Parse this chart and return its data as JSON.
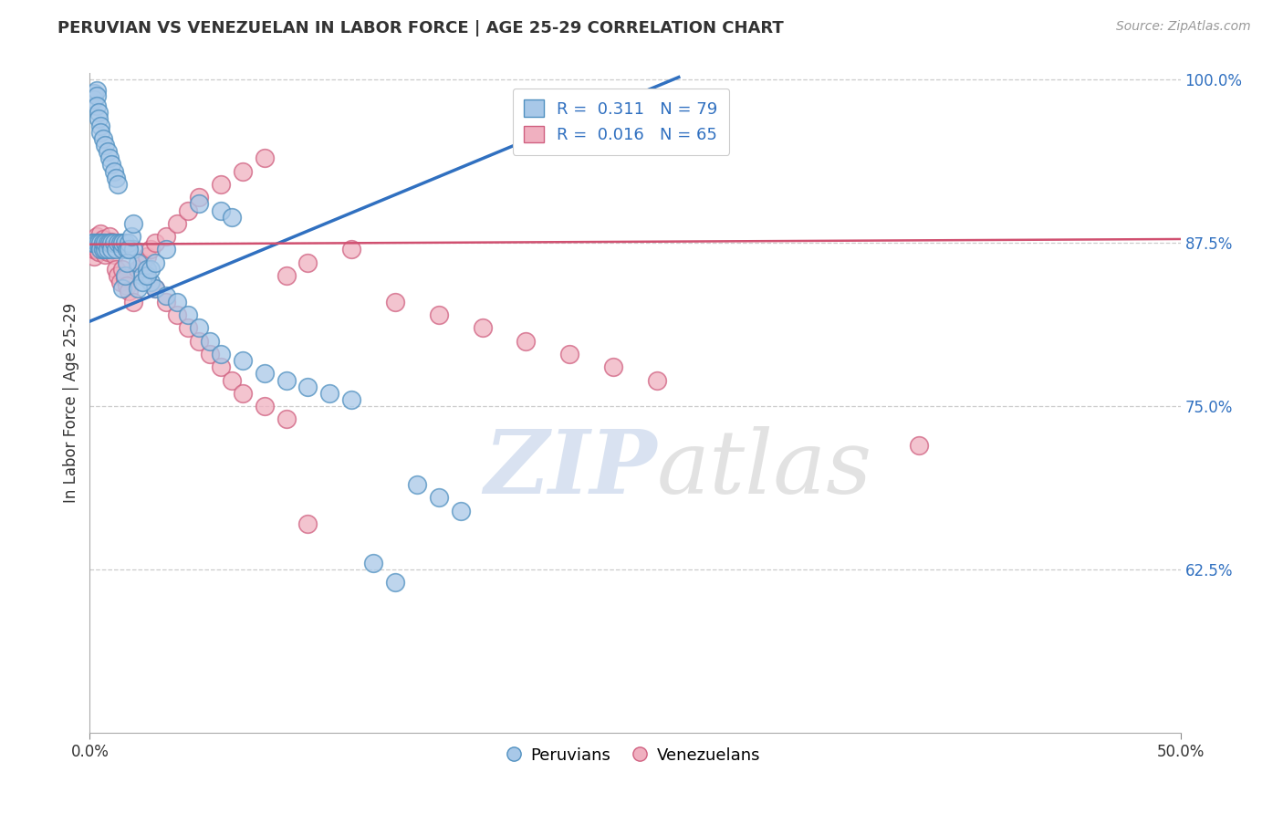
{
  "title": "PERUVIAN VS VENEZUELAN IN LABOR FORCE | AGE 25-29 CORRELATION CHART",
  "source": "Source: ZipAtlas.com",
  "ylabel": "In Labor Force | Age 25-29",
  "legend_label1": "Peruvians",
  "legend_label2": "Venezuelans",
  "R1": 0.311,
  "N1": 79,
  "R2": 0.016,
  "N2": 65,
  "color_blue_fill": "#a8c8e8",
  "color_blue_edge": "#5090c0",
  "color_pink_fill": "#f0b0c0",
  "color_pink_edge": "#d06080",
  "color_blue_line": "#3070c0",
  "color_pink_line": "#d05070",
  "watermark_zip": "#c8d8f0",
  "watermark_atlas": "#d8d8d8",
  "xmin": 0.0,
  "xmax": 0.5,
  "ymin": 0.5,
  "ymax": 1.005,
  "yticks": [
    0.625,
    0.75,
    0.875,
    1.0
  ],
  "ytick_labels": [
    "62.5%",
    "75.0%",
    "87.5%",
    "100.0%"
  ],
  "blue_line_x": [
    0.0,
    0.27
  ],
  "blue_line_y": [
    0.815,
    1.002
  ],
  "pink_line_x": [
    0.0,
    0.5
  ],
  "pink_line_y": [
    0.874,
    0.878
  ],
  "blue_x": [
    0.001,
    0.002,
    0.002,
    0.002,
    0.003,
    0.003,
    0.003,
    0.003,
    0.004,
    0.004,
    0.004,
    0.005,
    0.005,
    0.005,
    0.005,
    0.006,
    0.006,
    0.006,
    0.007,
    0.007,
    0.007,
    0.008,
    0.008,
    0.008,
    0.009,
    0.009,
    0.01,
    0.01,
    0.01,
    0.011,
    0.011,
    0.012,
    0.012,
    0.013,
    0.013,
    0.014,
    0.015,
    0.015,
    0.016,
    0.017,
    0.018,
    0.02,
    0.022,
    0.024,
    0.026,
    0.028,
    0.03,
    0.035,
    0.04,
    0.045,
    0.05,
    0.055,
    0.06,
    0.07,
    0.08,
    0.09,
    0.1,
    0.11,
    0.12,
    0.13,
    0.14,
    0.15,
    0.16,
    0.17,
    0.05,
    0.06,
    0.065,
    0.015,
    0.016,
    0.017,
    0.018,
    0.019,
    0.02,
    0.022,
    0.024,
    0.026,
    0.028,
    0.03,
    0.035
  ],
  "blue_y": [
    0.875,
    0.99,
    0.985,
    0.875,
    0.992,
    0.988,
    0.98,
    0.875,
    0.975,
    0.97,
    0.875,
    0.965,
    0.96,
    0.875,
    0.87,
    0.955,
    0.87,
    0.875,
    0.95,
    0.87,
    0.875,
    0.945,
    0.875,
    0.87,
    0.94,
    0.875,
    0.935,
    0.875,
    0.87,
    0.93,
    0.875,
    0.925,
    0.87,
    0.92,
    0.875,
    0.875,
    0.87,
    0.875,
    0.875,
    0.87,
    0.875,
    0.87,
    0.86,
    0.85,
    0.855,
    0.845,
    0.84,
    0.835,
    0.83,
    0.82,
    0.81,
    0.8,
    0.79,
    0.785,
    0.775,
    0.77,
    0.765,
    0.76,
    0.755,
    0.63,
    0.615,
    0.69,
    0.68,
    0.67,
    0.905,
    0.9,
    0.895,
    0.84,
    0.85,
    0.86,
    0.87,
    0.88,
    0.89,
    0.84,
    0.845,
    0.85,
    0.855,
    0.86,
    0.87
  ],
  "pink_x": [
    0.001,
    0.001,
    0.002,
    0.002,
    0.002,
    0.003,
    0.003,
    0.003,
    0.004,
    0.004,
    0.005,
    0.005,
    0.006,
    0.006,
    0.007,
    0.007,
    0.008,
    0.008,
    0.009,
    0.01,
    0.01,
    0.011,
    0.012,
    0.013,
    0.014,
    0.015,
    0.016,
    0.017,
    0.018,
    0.02,
    0.022,
    0.024,
    0.026,
    0.028,
    0.03,
    0.035,
    0.04,
    0.045,
    0.05,
    0.06,
    0.07,
    0.08,
    0.09,
    0.1,
    0.12,
    0.14,
    0.16,
    0.18,
    0.2,
    0.22,
    0.24,
    0.26,
    0.03,
    0.035,
    0.04,
    0.045,
    0.05,
    0.055,
    0.06,
    0.065,
    0.07,
    0.08,
    0.09,
    0.1,
    0.38
  ],
  "pink_y": [
    0.875,
    0.87,
    0.875,
    0.865,
    0.87,
    0.88,
    0.875,
    0.87,
    0.872,
    0.868,
    0.876,
    0.882,
    0.878,
    0.872,
    0.866,
    0.87,
    0.874,
    0.868,
    0.88,
    0.876,
    0.872,
    0.866,
    0.855,
    0.85,
    0.845,
    0.855,
    0.848,
    0.842,
    0.838,
    0.83,
    0.855,
    0.86,
    0.865,
    0.87,
    0.875,
    0.88,
    0.89,
    0.9,
    0.91,
    0.92,
    0.93,
    0.94,
    0.85,
    0.86,
    0.87,
    0.83,
    0.82,
    0.81,
    0.8,
    0.79,
    0.78,
    0.77,
    0.84,
    0.83,
    0.82,
    0.81,
    0.8,
    0.79,
    0.78,
    0.77,
    0.76,
    0.75,
    0.74,
    0.66,
    0.72
  ]
}
